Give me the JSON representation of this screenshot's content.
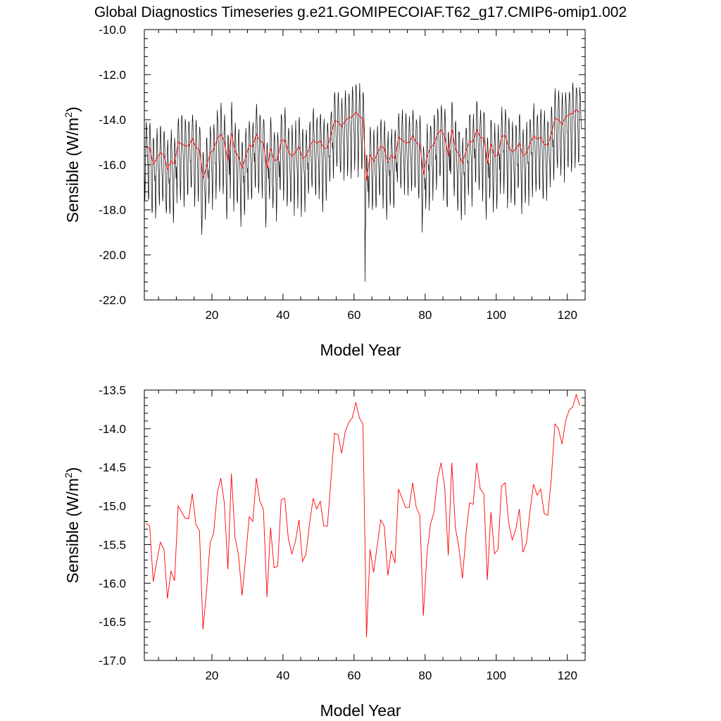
{
  "title": "Global Diagnostics Timeseries g.e21.GOMIPECOIAF.T62_g17.CMIP6-omip1.002",
  "colors": {
    "monthly": "#000000",
    "annual": "#ff0000",
    "axes": "#000000",
    "background": "#ffffff"
  },
  "chart_data": [
    {
      "type": "line",
      "xlabel": "Model Year",
      "ylabel_main": "Sensible (W/m",
      "ylabel_sup": "2",
      "ylabel_close": ")",
      "xlim": [
        1,
        125
      ],
      "ylim": [
        -22.0,
        -10.0
      ],
      "xticks": [
        20,
        40,
        60,
        80,
        100,
        120
      ],
      "xtick_labels": [
        "20",
        "40",
        "60",
        "80",
        "100",
        "120"
      ],
      "yticks": [
        -22.0,
        -20.0,
        -18.0,
        -16.0,
        -14.0,
        -12.0,
        -10.0
      ],
      "ytick_labels": [
        "-22.0",
        "-20.0",
        "-18.0",
        "-16.0",
        "-14.0",
        "-12.0",
        "-10.0"
      ],
      "grid": false,
      "series": [
        {
          "description_key": "monthly",
          "color": "#000000",
          "resolution": "monthly",
          "seasonal_min_offset": -2.6,
          "seasonal_max_offset": 1.3,
          "min_value": -21.2,
          "max_value": -11.7
        },
        {
          "description_key": "annual",
          "color": "#ff0000",
          "resolution": "annual",
          "values_ref": "annual_mean"
        }
      ]
    },
    {
      "type": "line",
      "xlabel": "Model Year",
      "ylabel_main": "Sensible (W/m",
      "ylabel_sup": "2",
      "ylabel_close": ")",
      "xlim": [
        1,
        125
      ],
      "ylim": [
        -17.0,
        -13.5
      ],
      "xticks": [
        20,
        40,
        60,
        80,
        100,
        120
      ],
      "xtick_labels": [
        "20",
        "40",
        "60",
        "80",
        "100",
        "120"
      ],
      "yticks": [
        -17.0,
        -16.5,
        -16.0,
        -15.5,
        -15.0,
        -14.5,
        -14.0,
        -13.5
      ],
      "ytick_labels": [
        "-17.0",
        "-16.5",
        "-16.0",
        "-15.5",
        "-15.0",
        "-14.5",
        "-14.0",
        "-13.5"
      ],
      "grid": false,
      "series": [
        {
          "color": "#ff0000",
          "values_ref": "annual_mean"
        }
      ]
    }
  ],
  "annual_mean": {
    "x_start": 1,
    "values": [
      -15.22,
      -15.26,
      -15.98,
      -15.72,
      -15.47,
      -15.56,
      -16.2,
      -15.84,
      -15.97,
      -15.0,
      -15.08,
      -15.16,
      -15.16,
      -14.84,
      -15.24,
      -15.32,
      -16.6,
      -16.1,
      -15.48,
      -15.35,
      -14.84,
      -14.64,
      -14.96,
      -15.82,
      -14.58,
      -15.4,
      -15.64,
      -16.16,
      -15.66,
      -15.14,
      -15.2,
      -14.64,
      -14.94,
      -15.04,
      -16.18,
      -15.28,
      -15.8,
      -15.78,
      -14.92,
      -14.9,
      -15.42,
      -15.62,
      -15.46,
      -15.18,
      -15.72,
      -15.62,
      -15.22,
      -14.9,
      -15.04,
      -14.94,
      -15.26,
      -15.26,
      -14.66,
      -14.06,
      -14.08,
      -14.32,
      -14.04,
      -13.92,
      -13.86,
      -13.66,
      -13.86,
      -13.94,
      -16.7,
      -15.56,
      -15.86,
      -15.52,
      -15.18,
      -15.26,
      -15.9,
      -15.58,
      -15.74,
      -14.78,
      -14.9,
      -15.02,
      -15.02,
      -14.7,
      -15.02,
      -15.12,
      -16.42,
      -15.62,
      -15.24,
      -15.08,
      -14.64,
      -14.44,
      -14.76,
      -15.64,
      -14.44,
      -15.28,
      -15.54,
      -15.94,
      -15.36,
      -14.96,
      -14.98,
      -14.44,
      -14.78,
      -14.84,
      -15.96,
      -15.08,
      -15.62,
      -15.56,
      -14.74,
      -14.7,
      -15.22,
      -15.44,
      -15.3,
      -15.04,
      -15.6,
      -15.48,
      -15.06,
      -14.72,
      -14.86,
      -14.78,
      -15.1,
      -15.12,
      -14.64,
      -13.94,
      -14.0,
      -14.2,
      -13.9,
      -13.76,
      -13.72,
      -13.56,
      -13.7
    ]
  }
}
